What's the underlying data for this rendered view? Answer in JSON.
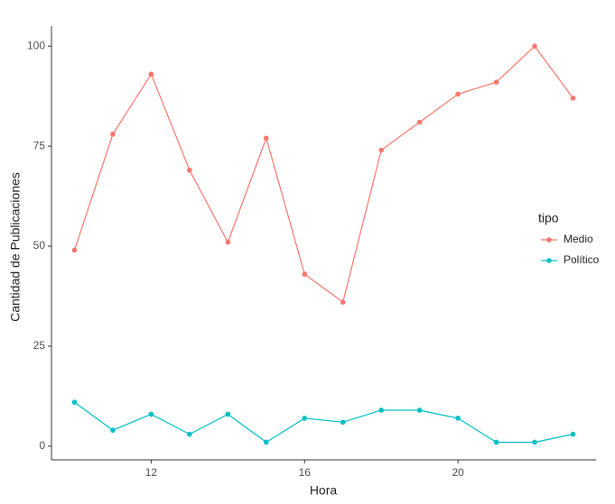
{
  "chart_data": {
    "type": "line",
    "x_label": "Hora",
    "y_label": "Cantidad de Publicaciones",
    "x": [
      10,
      11,
      12,
      13,
      14,
      15,
      16,
      17,
      18,
      19,
      20,
      21,
      22,
      23
    ],
    "series": [
      {
        "name": "Medio",
        "color": "#F8766D",
        "values": [
          49,
          78,
          93,
          69,
          51,
          77,
          43,
          36,
          74,
          81,
          88,
          91,
          100,
          87
        ]
      },
      {
        "name": "Político",
        "color": "#00BFC4",
        "values": [
          11,
          4,
          8,
          3,
          8,
          1,
          7,
          6,
          9,
          9,
          7,
          1,
          1,
          3
        ]
      }
    ],
    "legend_title": "tipo",
    "legend_position": "right",
    "xlim": [
      9.4,
      23.6
    ],
    "ylim": [
      -3.4,
      105
    ],
    "xticks": [
      12,
      16,
      20
    ],
    "yticks": [
      0,
      25,
      50,
      75,
      100
    ],
    "grid": false
  }
}
